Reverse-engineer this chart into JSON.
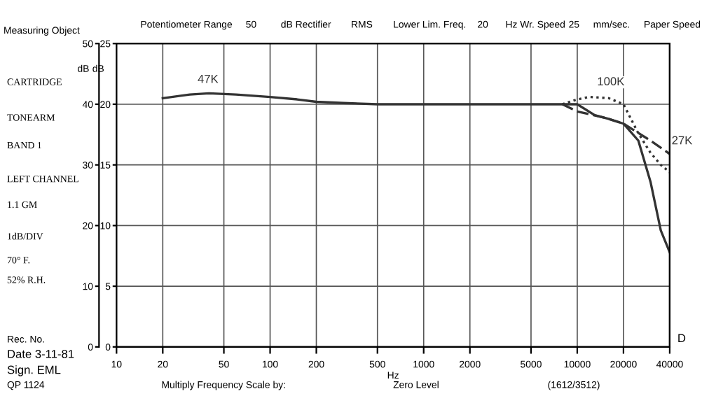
{
  "chart_data": {
    "type": "line",
    "xlabel": "Hz",
    "ylabel": "dB",
    "y2label": "dB",
    "y2lim": [
      0,
      50
    ],
    "y2ticks": [
      0,
      10,
      20,
      30,
      40,
      50
    ],
    "log": "x",
    "xlim": [
      10,
      40000
    ],
    "xticks": [
      10,
      20,
      50,
      100,
      200,
      500,
      1000,
      2000,
      5000,
      10000,
      20000,
      40000
    ],
    "ylim": [
      0,
      25
    ],
    "yticks": [
      0,
      5,
      10,
      15,
      20,
      25
    ],
    "grid": true,
    "marker": "none",
    "series": [
      {
        "name": "47K",
        "color": "#333333",
        "line_style": "solid",
        "x": [
          20,
          30,
          40,
          60,
          100,
          150,
          200,
          300,
          500,
          1000,
          2000,
          5000,
          8000,
          10000,
          13000,
          16000,
          20000,
          25000,
          30000,
          35000,
          40000
        ],
        "values": [
          20.5,
          20.8,
          20.9,
          20.8,
          20.6,
          20.4,
          20.2,
          20.1,
          20,
          20,
          20,
          20,
          20,
          20,
          19.1,
          18.8,
          18.4,
          17,
          13.6,
          9.6,
          7.8
        ]
      },
      {
        "name": "100K",
        "color": "#333333",
        "line_style": "dotted",
        "x": [
          8000,
          10000,
          12000,
          16000,
          20000,
          25000,
          30000,
          35000,
          40000
        ],
        "values": [
          20,
          20.4,
          20.6,
          20.5,
          20,
          17.6,
          16,
          15,
          14.4
        ]
      },
      {
        "name": "27K",
        "color": "#333333",
        "line_style": "dashed",
        "x": [
          8000,
          10000,
          15000,
          20000,
          30000,
          40000
        ],
        "values": [
          20,
          19.4,
          18.9,
          18.4,
          17,
          15.9
        ]
      }
    ],
    "annotations": [
      "Potentiometer Range",
      "50",
      "dB Rectifier",
      "RMS",
      "Lower Lim. Freq.",
      "20",
      "Hz Wr. Speed",
      "25",
      "mm/sec.",
      "Paper Speed",
      "Measuring Object",
      "CARTRIDGE",
      "TONEARM",
      "BAND 1",
      "LEFT CHANNEL",
      "1.1 GM",
      "1dB/DIV",
      "70° F.",
      "52% R.H.",
      "Rec. No.",
      "Date 3-11-81",
      "Sign. EML",
      "QP 1124",
      "Multiply Frequency Scale by:",
      "Zero Level",
      "(1612/3512)",
      "D"
    ]
  }
}
